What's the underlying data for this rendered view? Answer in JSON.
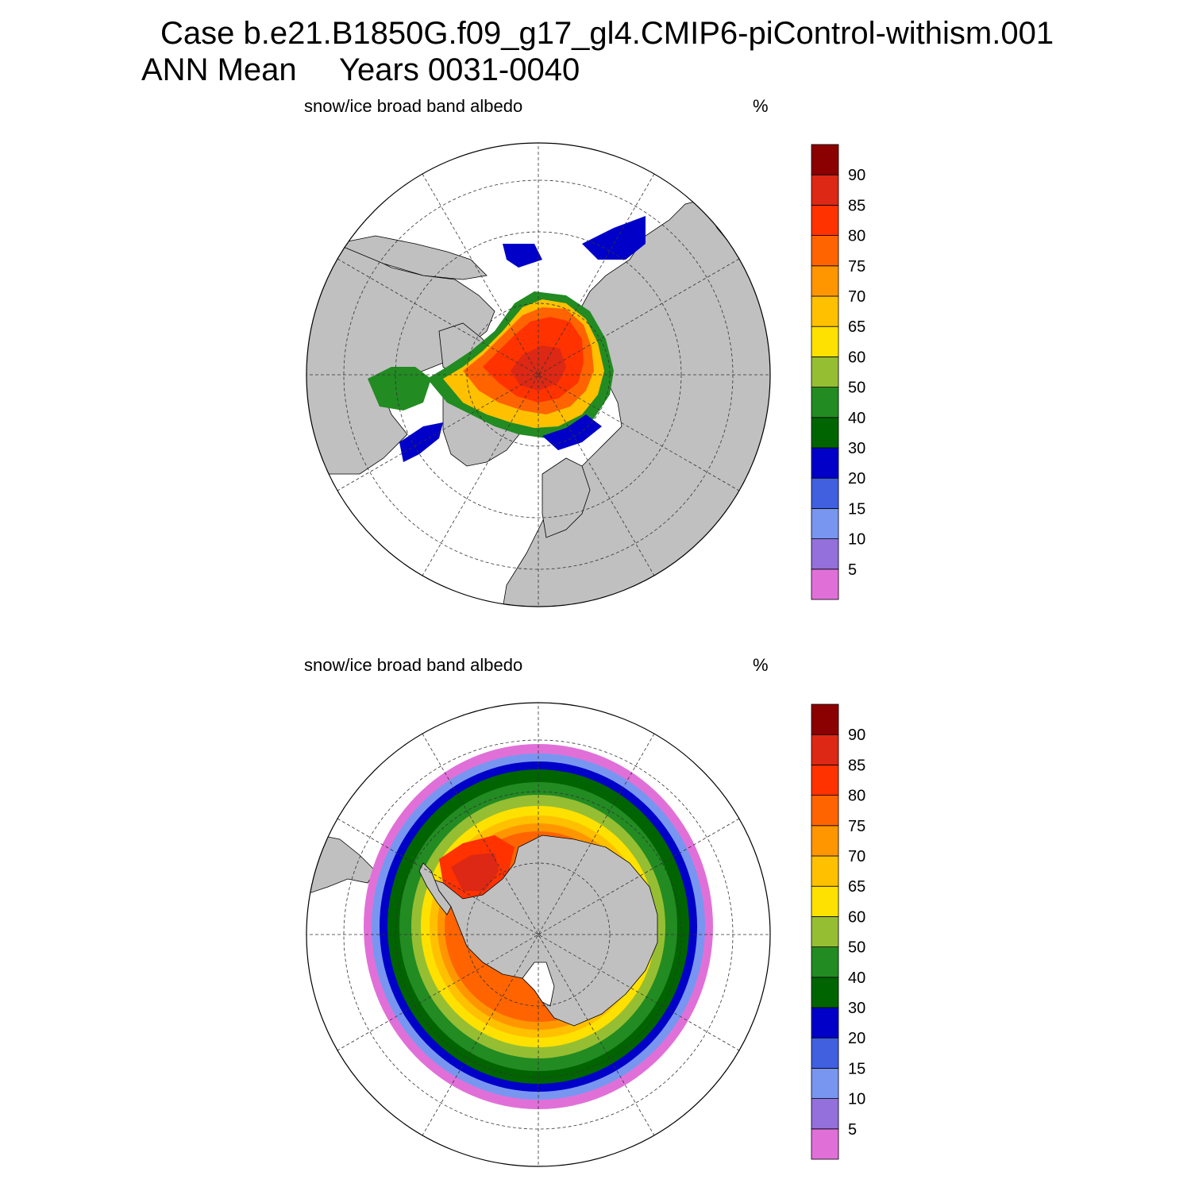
{
  "header": {
    "case_line": "Case b.e21.B1850G.f09_g17_gl4.CMIP6-piControl-withism.001",
    "season": "ANN Mean",
    "years": "Years 0031-0040"
  },
  "panels": [
    {
      "id": "north",
      "variable": "snow/ice broad band albedo",
      "units": "%",
      "hemisphere": "Northern"
    },
    {
      "id": "south",
      "variable": "snow/ice broad band albedo",
      "units": "%",
      "hemisphere": "Southern"
    }
  ],
  "colorbar": {
    "levels": [
      "5",
      "10",
      "15",
      "20",
      "30",
      "40",
      "50",
      "60",
      "65",
      "70",
      "75",
      "80",
      "85",
      "90"
    ],
    "colors": [
      "#e070d8",
      "#9370db",
      "#7896f0",
      "#4060e0",
      "#0000c8",
      "#006400",
      "#228b22",
      "#96be32",
      "#ffe100",
      "#ffc000",
      "#ff9600",
      "#ff6400",
      "#ff3200",
      "#dc2814",
      "#8b0000"
    ]
  },
  "map_style": {
    "land_color": "#c0c0c0",
    "ocean_color": "#ffffff",
    "grid_style": "dashed"
  }
}
